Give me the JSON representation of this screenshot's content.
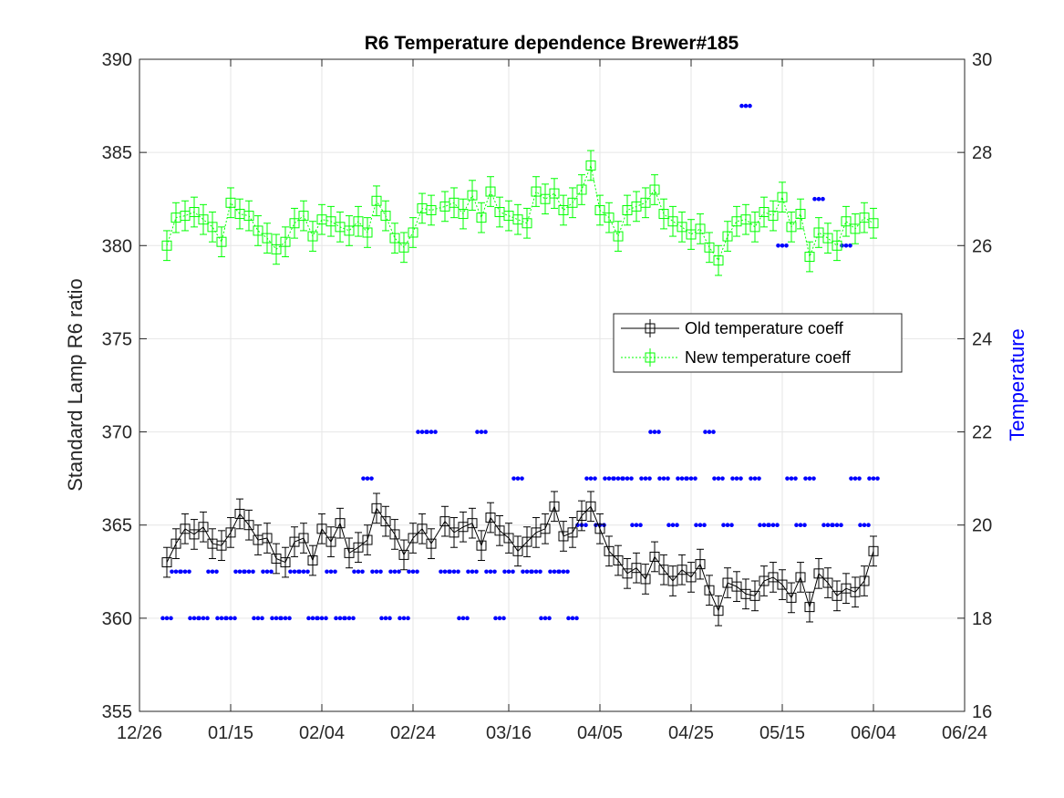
{
  "chart_data": {
    "type": "line",
    "title": "R6 Temperature dependence Brewer#185",
    "ylabel": "Standard Lamp R6 ratio",
    "y2label": "Temperature",
    "xlim": [
      "12/26",
      "06/24"
    ],
    "ylim": [
      355,
      390
    ],
    "y2lim": [
      16,
      30
    ],
    "xticks": [
      "12/26",
      "01/15",
      "02/04",
      "02/24",
      "03/16",
      "04/05",
      "04/25",
      "05/15",
      "06/04",
      "06/24"
    ],
    "yticks": [
      355,
      360,
      365,
      370,
      375,
      380,
      385,
      390
    ],
    "y2ticks": [
      16,
      18,
      20,
      22,
      24,
      26,
      28,
      30
    ],
    "grid": true,
    "legend_position": "center-right",
    "colors": {
      "old": "#000000",
      "new": "#00ff00",
      "temperature": "#0000ff",
      "temperature_label": "#0000ff"
    },
    "series": [
      {
        "name": "Old temperature coeff",
        "axis": "left",
        "color": "#000000",
        "marker": "square",
        "x": [
          "01/01",
          "01/03",
          "01/05",
          "01/07",
          "01/09",
          "01/11",
          "01/13",
          "01/15",
          "01/17",
          "01/19",
          "01/21",
          "01/23",
          "01/25",
          "01/27",
          "01/29",
          "01/31",
          "02/02",
          "02/04",
          "02/06",
          "02/08",
          "02/10",
          "02/12",
          "02/14",
          "02/16",
          "02/18",
          "02/20",
          "02/22",
          "02/24",
          "02/26",
          "02/28",
          "03/02",
          "03/04",
          "03/06",
          "03/08",
          "03/10",
          "03/12",
          "03/14",
          "03/16",
          "03/18",
          "03/20",
          "03/22",
          "03/24",
          "03/26",
          "03/28",
          "03/30",
          "04/01",
          "04/03",
          "04/05",
          "04/07",
          "04/09",
          "04/11",
          "04/13",
          "04/15",
          "04/17",
          "04/19",
          "04/21",
          "04/23",
          "04/25",
          "04/27",
          "04/29",
          "05/01",
          "05/03",
          "05/05",
          "05/07",
          "05/09",
          "05/11",
          "05/13",
          "05/15",
          "05/17",
          "05/19",
          "05/21",
          "05/23",
          "05/25",
          "05/27",
          "05/29",
          "05/31",
          "06/02",
          "06/04"
        ],
        "y": [
          363.0,
          364.0,
          364.8,
          364.5,
          364.9,
          364.0,
          363.9,
          364.6,
          365.6,
          365.0,
          364.2,
          364.3,
          363.2,
          363.0,
          364.1,
          364.3,
          363.1,
          364.8,
          364.1,
          365.1,
          363.5,
          363.8,
          364.2,
          365.9,
          365.2,
          364.5,
          363.4,
          364.3,
          364.8,
          364.0,
          365.2,
          364.6,
          364.9,
          365.1,
          363.9,
          365.4,
          364.7,
          364.3,
          363.6,
          364.1,
          364.6,
          364.8,
          366.0,
          364.4,
          364.6,
          365.5,
          366.0,
          364.8,
          363.6,
          363.1,
          362.4,
          362.7,
          362.1,
          363.3,
          362.6,
          362.0,
          362.6,
          362.2,
          362.9,
          361.5,
          360.4,
          361.9,
          361.7,
          361.3,
          361.2,
          362.0,
          362.2,
          361.8,
          361.1,
          362.2,
          360.6,
          362.4,
          361.9,
          361.2,
          361.6,
          361.4,
          362.0,
          363.6
        ],
        "error": 0.8
      },
      {
        "name": "New temperature coeff",
        "axis": "left",
        "color": "#00ff00",
        "marker": "square",
        "x": [
          "01/01",
          "01/03",
          "01/05",
          "01/07",
          "01/09",
          "01/11",
          "01/13",
          "01/15",
          "01/17",
          "01/19",
          "01/21",
          "01/23",
          "01/25",
          "01/27",
          "01/29",
          "01/31",
          "02/02",
          "02/04",
          "02/06",
          "02/08",
          "02/10",
          "02/12",
          "02/14",
          "02/16",
          "02/18",
          "02/20",
          "02/22",
          "02/24",
          "02/26",
          "02/28",
          "03/02",
          "03/04",
          "03/06",
          "03/08",
          "03/10",
          "03/12",
          "03/14",
          "03/16",
          "03/18",
          "03/20",
          "03/22",
          "03/24",
          "03/26",
          "03/28",
          "03/30",
          "04/01",
          "04/03",
          "04/05",
          "04/07",
          "04/09",
          "04/11",
          "04/13",
          "04/15",
          "04/17",
          "04/19",
          "04/21",
          "04/23",
          "04/25",
          "04/27",
          "04/29",
          "05/01",
          "05/03",
          "05/05",
          "05/07",
          "05/09",
          "05/11",
          "05/13",
          "05/15",
          "05/17",
          "05/19",
          "05/21",
          "05/23",
          "05/25",
          "05/27",
          "05/29",
          "05/31",
          "06/02",
          "06/04"
        ],
        "y": [
          380.0,
          381.5,
          381.6,
          381.8,
          381.4,
          381.0,
          380.2,
          382.3,
          381.7,
          381.6,
          380.8,
          380.4,
          379.8,
          380.2,
          381.2,
          381.6,
          380.5,
          381.4,
          381.3,
          381.0,
          380.8,
          381.3,
          380.7,
          382.4,
          381.6,
          380.4,
          379.9,
          380.7,
          382.0,
          381.9,
          382.1,
          382.3,
          381.7,
          382.7,
          381.5,
          382.9,
          381.8,
          381.6,
          381.4,
          381.2,
          382.9,
          382.5,
          382.8,
          381.9,
          382.3,
          383.0,
          384.3,
          381.9,
          381.5,
          380.5,
          381.9,
          382.1,
          382.3,
          383.0,
          381.7,
          381.3,
          381.0,
          380.6,
          380.9,
          379.9,
          379.2,
          380.5,
          381.3,
          381.4,
          381.0,
          381.8,
          381.6,
          382.6,
          381.0,
          381.7,
          379.4,
          380.7,
          380.4,
          380.0,
          381.3,
          380.9,
          381.5,
          381.2
        ],
        "error": 0.8
      },
      {
        "name": "",
        "axis": "right",
        "color": "#0000ff",
        "marker": "dot",
        "x": [
          "01/01",
          "01/03",
          "01/05",
          "01/07",
          "01/09",
          "01/11",
          "01/13",
          "01/15",
          "01/17",
          "01/19",
          "01/21",
          "01/23",
          "01/25",
          "01/27",
          "01/29",
          "01/31",
          "02/02",
          "02/04",
          "02/06",
          "02/08",
          "02/10",
          "02/12",
          "02/14",
          "02/16",
          "02/18",
          "02/20",
          "02/22",
          "02/24",
          "02/26",
          "02/28",
          "03/02",
          "03/04",
          "03/06",
          "03/08",
          "03/10",
          "03/12",
          "03/14",
          "03/16",
          "03/18",
          "03/20",
          "03/22",
          "03/24",
          "03/26",
          "03/28",
          "03/30",
          "04/01",
          "04/03",
          "04/05",
          "04/07",
          "04/09",
          "04/11",
          "04/13",
          "04/15",
          "04/17",
          "04/19",
          "04/21",
          "04/23",
          "04/25",
          "04/27",
          "04/29",
          "05/01",
          "05/03",
          "05/05",
          "05/07",
          "05/09",
          "05/11",
          "05/13",
          "05/15",
          "05/17",
          "05/19",
          "05/21",
          "05/23",
          "05/25",
          "05/27",
          "05/29",
          "05/31",
          "06/02",
          "06/04"
        ],
        "y": [
          18,
          19,
          19,
          18,
          18,
          19,
          18,
          18,
          19,
          19,
          18,
          19,
          18,
          18,
          19,
          19,
          18,
          18,
          19,
          18,
          18,
          19,
          21,
          19,
          18,
          19,
          18,
          19,
          22,
          22,
          19,
          19,
          18,
          19,
          22,
          19,
          18,
          19,
          21,
          19,
          19,
          18,
          19,
          19,
          18,
          20,
          21,
          20,
          21,
          21,
          21,
          20,
          21,
          22,
          21,
          20,
          21,
          21,
          20,
          22,
          21,
          20,
          21,
          29,
          21,
          20,
          20,
          26,
          21,
          20,
          21,
          27,
          20,
          20,
          26,
          21,
          20,
          21
        ],
        "y_mode": 18.5,
        "y_range": [
          17,
          30
        ]
      }
    ]
  }
}
